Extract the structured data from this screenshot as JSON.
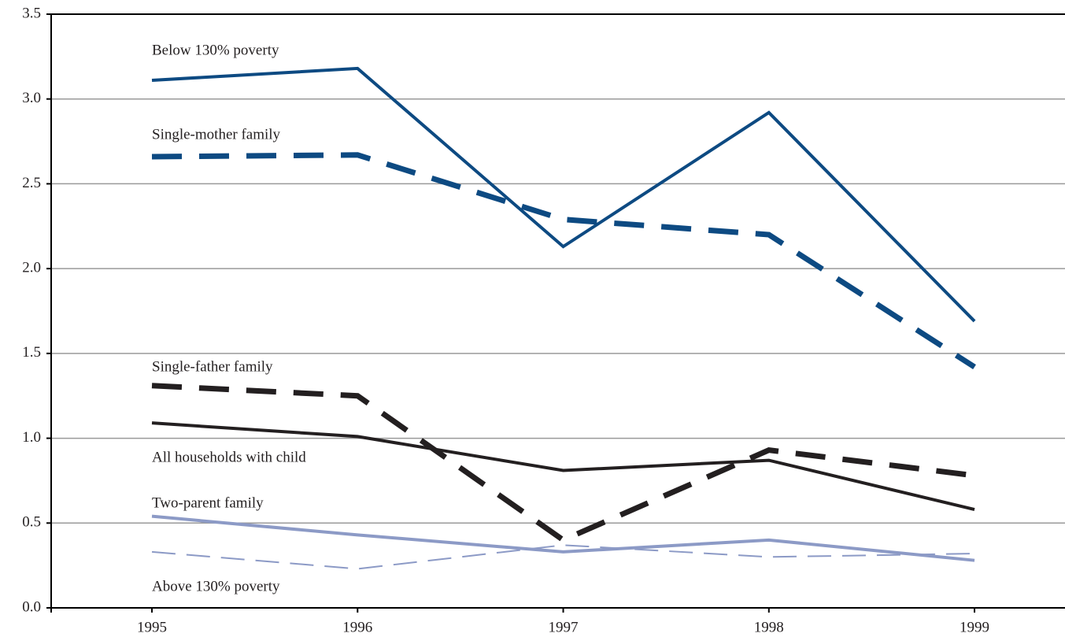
{
  "chart_data": {
    "type": "line",
    "x": [
      1995,
      1996,
      1997,
      1998,
      1999
    ],
    "xlim": [
      1994.51,
      1999.44
    ],
    "xticks": [
      1995,
      1996,
      1997,
      1998,
      1999
    ],
    "ylim": [
      0,
      3.5
    ],
    "yticks": [
      {
        "value": 0,
        "label": "0.0"
      },
      {
        "value": 0.5,
        "label": "0.5"
      },
      {
        "value": 1,
        "label": "1.0"
      },
      {
        "value": 1.5,
        "label": "1.5"
      },
      {
        "value": 2,
        "label": "2.0"
      },
      {
        "value": 2.5,
        "label": "2.5"
      },
      {
        "value": 3,
        "label": "3.0"
      },
      {
        "value": 3.5,
        "label": "3.5"
      }
    ],
    "grid": true,
    "series": [
      {
        "name": "Below 130% poverty",
        "color": "#0d4a82",
        "style": "solid",
        "values": [
          3.11,
          3.18,
          2.13,
          2.92,
          1.69
        ]
      },
      {
        "name": "Single-mother family",
        "color": "#0d4a82",
        "style": "dashed",
        "values": [
          2.66,
          2.67,
          2.29,
          2.2,
          1.42
        ]
      },
      {
        "name": "Single-father family",
        "color": "#231f20",
        "style": "dashed",
        "values": [
          1.31,
          1.25,
          0.4,
          0.93,
          0.78
        ]
      },
      {
        "name": "All households with child",
        "color": "#231f20",
        "style": "solid",
        "values": [
          1.09,
          1.01,
          0.81,
          0.87,
          0.58
        ]
      },
      {
        "name": "Two-parent family",
        "color": "#8c9ac6",
        "style": "solid",
        "values": [
          0.54,
          0.43,
          0.33,
          0.4,
          0.28
        ]
      },
      {
        "name": "Above 130% poverty",
        "color": "#8c9ac6",
        "style": "thin-dashed",
        "values": [
          0.33,
          0.23,
          0.37,
          0.3,
          0.32
        ]
      }
    ]
  }
}
